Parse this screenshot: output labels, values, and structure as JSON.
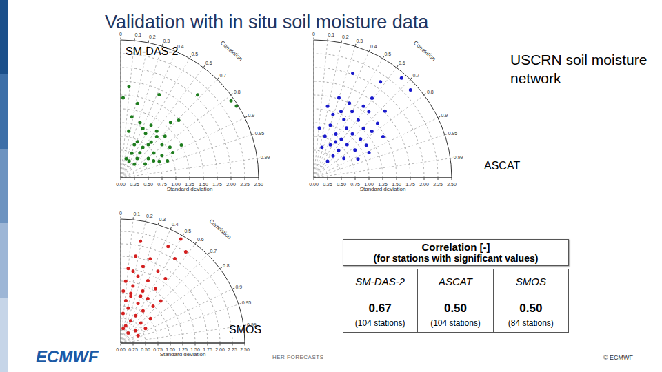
{
  "title": "Validation with in situ soil moisture data",
  "subtitle": "USCRN soil moisture network",
  "chart_data": [
    {
      "type": "taylor",
      "title": "SM-DAS-2",
      "x_label": "Standard deviation",
      "angular_label": "Correlation",
      "grid": true,
      "xlim": [
        0,
        2.5
      ],
      "xticks": [
        {
          "value": 0,
          "label": "0.00"
        },
        0.25,
        {
          "value": 0.5,
          "label": "0.50"
        },
        0.75,
        {
          "value": 1,
          "label": "1.00"
        },
        1.25,
        {
          "value": 1.5,
          "label": "1.50"
        },
        1.75,
        {
          "value": 2,
          "label": "2.00"
        },
        2.25,
        {
          "value": 2.5,
          "label": "2.50"
        }
      ],
      "correlation_ticks": [
        0,
        0.1,
        0.2,
        0.3,
        0.4,
        0.5,
        0.6,
        0.7,
        0.8,
        0.9,
        0.95,
        0.99
      ],
      "series": [
        {
          "color": "#1e7d1e",
          "marker": "circle",
          "std": [
            1.45,
            1.66,
            1.38,
            1.66,
            2.05,
            2.47,
            2.44,
            1.35,
            1.48,
            1.1,
            1.06,
            1.07,
            1.1,
            0.86,
            0.92,
            0.72,
            0.85,
            0.96,
            1.05,
            0.68,
            0.49,
            0.75,
            1.05,
            0.36,
            0.46,
            0.61,
            0.76,
            0.35,
            0.51,
            0.9,
            0.67,
            0.57,
            0.34,
            0.85,
            0.78,
            0.65,
            0.99,
            0.98,
            1.25,
            1.12
          ],
          "correlation": [
            0.03,
            0.09,
            0.22,
            0.42,
            0.68,
            0.85,
            0.82,
            0.67,
            0.71,
            0.5,
            0.33,
            0.61,
            0.73,
            0.17,
            0.49,
            0.42,
            0.65,
            0.78,
            0.85,
            0.59,
            0.41,
            0.8,
            0.9,
            0.28,
            0.65,
            0.82,
            0.92,
            0.71,
            0.87,
            0.94,
            0.89,
            0.61,
            0.45,
            0.88,
            0.64,
            0.38,
            0.66,
            0.41,
            0.88,
            0.18
          ]
        }
      ]
    },
    {
      "type": "taylor",
      "title": "ASCAT",
      "x_label": "Standard deviation",
      "angular_label": "Correlation",
      "grid": true,
      "xlim": [
        0,
        2.5
      ],
      "xticks": [
        {
          "value": 0,
          "label": "0.00"
        },
        0.25,
        {
          "value": 0.5,
          "label": "0.50"
        },
        0.75,
        {
          "value": 1,
          "label": "1.00"
        },
        1.25,
        {
          "value": 1.5,
          "label": "1.50"
        },
        1.75,
        {
          "value": 2,
          "label": "2.00"
        },
        2.25,
        {
          "value": 2.5,
          "label": "2.50"
        }
      ],
      "correlation_ticks": [
        0,
        0.1,
        0.2,
        0.3,
        0.4,
        0.5,
        0.6,
        0.7,
        0.8,
        0.9,
        0.95,
        0.99
      ],
      "series": [
        {
          "color": "#1a1acc",
          "marker": "circle",
          "std": [
            2.41,
            2.37,
            2.12,
            2.02,
            1.79,
            1.58,
            1.52,
            1.39,
            1.56,
            1.19,
            1.32,
            1.52,
            1.0,
            1.08,
            1.27,
            0.89,
            1.06,
            1.35,
            0.78,
            0.86,
            1.1,
            0.67,
            0.85,
            1.12,
            0.57,
            0.67,
            0.9,
            0.53,
            0.65,
            0.39,
            1.46,
            1.5,
            1.2,
            1.1,
            0.91,
            1.3,
            0.87,
            1.32,
            1.77,
            0.76
          ],
          "correlation": [
            0.66,
            0.74,
            0.57,
            0.35,
            0.59,
            0.57,
            0.3,
            0.5,
            0.64,
            0.46,
            0.61,
            0.76,
            0.3,
            0.55,
            0.71,
            0.45,
            0.66,
            0.78,
            0.26,
            0.58,
            0.77,
            0.45,
            0.71,
            0.85,
            0.26,
            0.67,
            0.83,
            0.66,
            0.84,
            0.64,
            0.86,
            0.43,
            0.29,
            0.91,
            0.11,
            0.38,
            0.92,
            0.19,
            0.73,
            0.52
          ]
        }
      ]
    },
    {
      "type": "taylor",
      "title": "SMOS",
      "x_label": "Standard deviation",
      "angular_label": "Correlation",
      "grid": true,
      "xlim": [
        0,
        2.5
      ],
      "xticks": [
        {
          "value": 0,
          "label": "0.00"
        },
        0.25,
        {
          "value": 0.5,
          "label": "0.50"
        },
        0.75,
        {
          "value": 1,
          "label": "1.00"
        },
        1.25,
        {
          "value": 1.5,
          "label": "1.50"
        },
        1.75,
        {
          "value": 2,
          "label": "2.00"
        },
        2.25,
        {
          "value": 2.5,
          "label": "2.50"
        }
      ],
      "correlation_ticks": [
        0,
        0.1,
        0.2,
        0.3,
        0.4,
        0.5,
        0.6,
        0.7,
        0.8,
        0.9,
        0.95,
        0.99
      ],
      "series": [
        {
          "color": "#d42020",
          "marker": "circle",
          "std": [
            2.09,
            2.42,
            2.17,
            2.26,
            1.78,
            1.8,
            1.61,
            1.51,
            1.63,
            1.39,
            1.25,
            1.37,
            1.58,
            1.18,
            1.05,
            1.14,
            1.3,
            0.97,
            1.05,
            0.86,
            0.87,
            1.17,
            0.72,
            0.79,
            0.6,
            0.63,
            0.49,
            0.57,
            0.36,
            0.39,
            0.25,
            0.58,
            0.3,
            1.47,
            0.78,
            1.03,
            1.02,
            2.02,
            0.99,
            0.38
          ],
          "correlation": [
            0.19,
            0.5,
            0.44,
            0.58,
            0.17,
            0.33,
            0.28,
            0.1,
            0.46,
            0.25,
            0.08,
            0.4,
            0.57,
            0.21,
            0.05,
            0.39,
            0.54,
            0.21,
            0.52,
            0.12,
            0.4,
            0.69,
            0.21,
            0.57,
            0.08,
            0.48,
            0.41,
            0.71,
            0.28,
            0.77,
            0.6,
            0.86,
            0.17,
            0.17,
            0.77,
            0.39,
            0.2,
            0.54,
            0.66,
            0.92
          ]
        }
      ]
    }
  ],
  "table": {
    "header": [
      "Correlation [-]",
      "(for stations with significant values)"
    ],
    "columns": [
      "SM-DAS-2",
      "ASCAT",
      "SMOS"
    ],
    "values": [
      "0.67",
      "0.50",
      "0.50"
    ],
    "stations": [
      "(104 stations)",
      "(104 stations)",
      "(84 stations)"
    ]
  },
  "footer": {
    "logo": "ECMWF",
    "text": "HER FORECASTS",
    "copyright": "© ECMWF"
  }
}
